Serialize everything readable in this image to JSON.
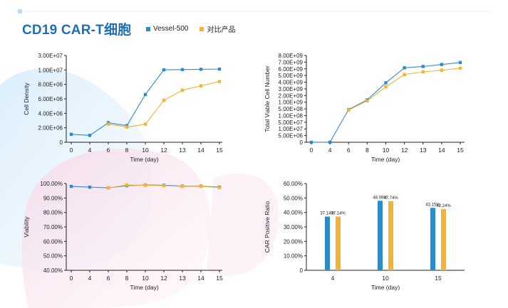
{
  "page": {
    "title": "CD19 CAR-T细胞",
    "colors": {
      "series_a": "#2d8bc9",
      "series_b": "#f5b335",
      "title": "#1f6fb5",
      "axis": "#222222"
    }
  },
  "legend": [
    {
      "name": "Vessel-500",
      "color": "#2d8bc9"
    },
    {
      "name": "对比产品",
      "color": "#f5b335"
    }
  ],
  "chart_data": [
    {
      "id": "cell-density",
      "type": "line",
      "xlabel": "Time (day)",
      "ylabel": "Cell Density",
      "x": [
        0,
        4,
        6,
        8,
        10,
        12,
        13,
        14,
        15
      ],
      "xticks": [
        "0",
        "4",
        "6",
        "8",
        "10",
        "12",
        "13",
        "14",
        "15"
      ],
      "ylim": [
        0,
        30000000
      ],
      "yticks": [
        0,
        2000000,
        4000000,
        6000000,
        8000000,
        10000000,
        30000000
      ],
      "yticklabels": [
        "0",
        "2.00E+06",
        "4.00E+06",
        "6.00E+06",
        "8.00E+06",
        "1.00E+07",
        "3.00E+07"
      ],
      "series": [
        {
          "name": "Vessel-500",
          "values": [
            1100000,
            950000,
            2700000,
            2300000,
            6600000,
            10150000,
            10500000,
            10900000,
            11200000
          ]
        },
        {
          "name": "对比产品",
          "values": [
            null,
            null,
            2500000,
            2100000,
            2500000,
            5800000,
            7200000,
            7800000,
            8400000
          ]
        }
      ]
    },
    {
      "id": "total-viable-cell-number",
      "type": "line",
      "xlabel": "Time (day)",
      "ylabel": "Total Viable Cell Number",
      "x": [
        0,
        4,
        6,
        8,
        10,
        12,
        13,
        14,
        15
      ],
      "xticks": [
        "0",
        "4",
        "6",
        "8",
        "10",
        "12",
        "13",
        "14",
        "15"
      ],
      "ylim": [
        0,
        8000000000
      ],
      "yticks": [
        0,
        5000000,
        10000000,
        50000000,
        100000000,
        500000000,
        1000000000,
        2000000000,
        3000000000,
        4000000000,
        5000000000,
        6000000000,
        7000000000,
        8000000000
      ],
      "yticklabels": [
        "0",
        "5.00E+06",
        "1.00E+07",
        "5.00E+07",
        "1.00E+08",
        "5.00E+08",
        "1.00E+09",
        "2.00E+09",
        "3.00E+09",
        "4.00E+09",
        "5.00E+09",
        "6.00E+09",
        "7.00E+09",
        "8.00E+09"
      ],
      "series": [
        {
          "name": "Vessel-500",
          "values": [
            30000,
            80000,
            460000000,
            1350000000,
            3900000000,
            6150000000,
            6350000000,
            6650000000,
            6950000000
          ]
        },
        {
          "name": "对比产品",
          "values": [
            null,
            null,
            430000000,
            1200000000,
            3300000000,
            5150000000,
            5550000000,
            5800000000,
            6100000000
          ]
        }
      ]
    },
    {
      "id": "viability",
      "type": "line",
      "xlabel": "Time (day)",
      "ylabel": "Viability",
      "x": [
        0,
        4,
        6,
        8,
        10,
        12,
        13,
        14,
        15
      ],
      "xticks": [
        "0",
        "4",
        "6",
        "8",
        "10",
        "12",
        "13",
        "14",
        "15"
      ],
      "ylim": [
        40,
        100
      ],
      "yticks": [
        40,
        50,
        60,
        70,
        80,
        90,
        100
      ],
      "yticklabels": [
        "40.00%",
        "50.00%",
        "60.00%",
        "70.00%",
        "80.00%",
        "90.00%",
        "100.00%"
      ],
      "series": [
        {
          "name": "Vessel-500",
          "values": [
            98.0,
            97.5,
            97.0,
            98.5,
            99.0,
            98.8,
            98.2,
            98.2,
            97.5
          ]
        },
        {
          "name": "对比产品",
          "values": [
            null,
            null,
            97.0,
            99.0,
            98.8,
            98.5,
            98.0,
            98.0,
            97.2
          ]
        }
      ]
    },
    {
      "id": "car-positive-ratio",
      "type": "bar",
      "xlabel": "Time (day)",
      "ylabel": "CAR Positive Ratio",
      "categories": [
        "4",
        "10",
        "15"
      ],
      "ylim": [
        0,
        60
      ],
      "yticks": [
        0,
        10,
        20,
        30,
        40,
        50,
        60
      ],
      "yticklabels": [
        "0",
        "10.00%",
        "20.00%",
        "30.00%",
        "40.00%",
        "50.00%",
        "60.00%"
      ],
      "series": [
        {
          "name": "Vessel-500",
          "values": [
            37.14,
            48.06,
            43.15
          ],
          "labels": [
            "37.14%",
            "48.06%",
            "43.15%"
          ]
        },
        {
          "name": "对比产品",
          "values": [
            37.14,
            47.74,
            42.24
          ],
          "labels": [
            "37.14%",
            "47.74%",
            "42.24%"
          ]
        }
      ]
    }
  ]
}
